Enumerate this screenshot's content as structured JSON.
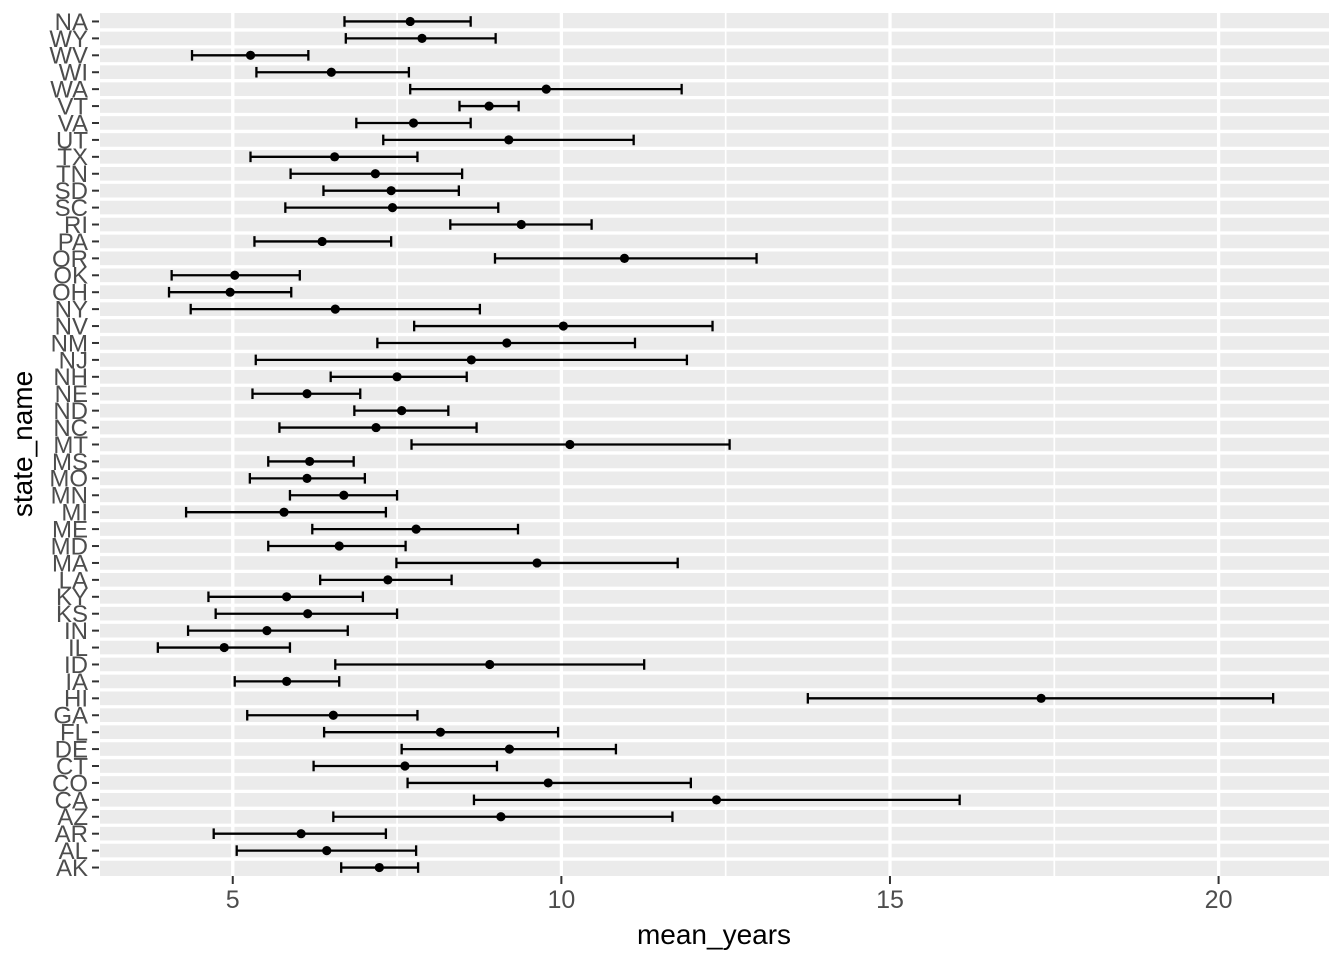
{
  "figure": {
    "background": "#FFFFFF",
    "panel_background": "#EBEBEB",
    "grid_color": "#FFFFFF",
    "axis_text_color": "#4D4D4D",
    "axis_title_color": "#000000",
    "tick_mark_color": "#333333",
    "data_color": "#000000"
  },
  "chart_data": {
    "type": "pointrange",
    "orientation": "horizontal",
    "title": "",
    "xlabel": "mean_years",
    "ylabel": "state_name",
    "grid": true,
    "legend": "none",
    "xlim": [
      2.98,
      21.68
    ],
    "x_ticks": [
      5,
      10,
      15,
      20
    ],
    "x_tick_labels": [
      "5",
      "10",
      "15",
      "20"
    ],
    "x_minor_ticks": [
      7.5,
      12.5,
      17.5
    ],
    "categories_top_to_bottom": [
      "NA",
      "WY",
      "WV",
      "WI",
      "WA",
      "VT",
      "VA",
      "UT",
      "TX",
      "TN",
      "SD",
      "SC",
      "RI",
      "PA",
      "OR",
      "OK",
      "OH",
      "NY",
      "NV",
      "NM",
      "NJ",
      "NH",
      "NE",
      "ND",
      "NC",
      "MT",
      "MS",
      "MO",
      "MN",
      "MI",
      "ME",
      "MD",
      "MA",
      "LA",
      "KY",
      "KS",
      "IN",
      "IL",
      "ID",
      "IA",
      "HI",
      "GA",
      "FL",
      "DE",
      "CT",
      "CO",
      "CA",
      "AZ",
      "AR",
      "AL",
      "AK"
    ],
    "points": [
      {
        "state": "NA",
        "mean": 7.7,
        "low": 6.7,
        "high": 8.62
      },
      {
        "state": "WY",
        "mean": 7.88,
        "low": 6.72,
        "high": 9.0
      },
      {
        "state": "WV",
        "mean": 5.27,
        "low": 4.38,
        "high": 6.15
      },
      {
        "state": "WI",
        "mean": 6.5,
        "low": 5.36,
        "high": 7.68
      },
      {
        "state": "WA",
        "mean": 9.77,
        "low": 7.7,
        "high": 11.83
      },
      {
        "state": "VT",
        "mean": 8.9,
        "low": 8.45,
        "high": 9.35
      },
      {
        "state": "VA",
        "mean": 7.75,
        "low": 6.88,
        "high": 8.62
      },
      {
        "state": "UT",
        "mean": 9.2,
        "low": 7.29,
        "high": 11.1
      },
      {
        "state": "TX",
        "mean": 6.55,
        "low": 5.27,
        "high": 7.81
      },
      {
        "state": "TN",
        "mean": 7.17,
        "low": 5.88,
        "high": 8.49
      },
      {
        "state": "SD",
        "mean": 7.41,
        "low": 6.38,
        "high": 8.44
      },
      {
        "state": "SC",
        "mean": 7.43,
        "low": 5.8,
        "high": 9.04
      },
      {
        "state": "RI",
        "mean": 9.39,
        "low": 8.31,
        "high": 10.46
      },
      {
        "state": "PA",
        "mean": 6.36,
        "low": 5.33,
        "high": 7.41
      },
      {
        "state": "OR",
        "mean": 10.96,
        "low": 8.99,
        "high": 12.97
      },
      {
        "state": "OK",
        "mean": 5.03,
        "low": 4.07,
        "high": 6.02
      },
      {
        "state": "OH",
        "mean": 4.96,
        "low": 4.03,
        "high": 5.89
      },
      {
        "state": "NY",
        "mean": 6.56,
        "low": 4.36,
        "high": 8.76
      },
      {
        "state": "NV",
        "mean": 10.03,
        "low": 7.76,
        "high": 12.3
      },
      {
        "state": "NM",
        "mean": 9.17,
        "low": 7.2,
        "high": 11.12
      },
      {
        "state": "NJ",
        "mean": 8.63,
        "low": 5.35,
        "high": 11.91
      },
      {
        "state": "NH",
        "mean": 7.5,
        "low": 6.49,
        "high": 8.56
      },
      {
        "state": "NE",
        "mean": 6.13,
        "low": 5.3,
        "high": 6.94
      },
      {
        "state": "ND",
        "mean": 7.57,
        "low": 6.85,
        "high": 8.28
      },
      {
        "state": "NC",
        "mean": 7.18,
        "low": 5.71,
        "high": 8.71
      },
      {
        "state": "MT",
        "mean": 10.13,
        "low": 7.72,
        "high": 12.56
      },
      {
        "state": "MS",
        "mean": 6.17,
        "low": 5.54,
        "high": 6.84
      },
      {
        "state": "MO",
        "mean": 6.13,
        "low": 5.26,
        "high": 7.01
      },
      {
        "state": "MN",
        "mean": 6.69,
        "low": 5.87,
        "high": 7.5
      },
      {
        "state": "MI",
        "mean": 5.78,
        "low": 4.29,
        "high": 7.33
      },
      {
        "state": "ME",
        "mean": 7.79,
        "low": 6.21,
        "high": 9.34
      },
      {
        "state": "MD",
        "mean": 6.62,
        "low": 5.54,
        "high": 7.63
      },
      {
        "state": "MA",
        "mean": 9.63,
        "low": 7.49,
        "high": 11.77
      },
      {
        "state": "LA",
        "mean": 7.36,
        "low": 6.33,
        "high": 8.33
      },
      {
        "state": "KY",
        "mean": 5.82,
        "low": 4.63,
        "high": 6.98
      },
      {
        "state": "KS",
        "mean": 6.14,
        "low": 4.74,
        "high": 7.5
      },
      {
        "state": "IN",
        "mean": 5.52,
        "low": 4.32,
        "high": 6.75
      },
      {
        "state": "IL",
        "mean": 4.87,
        "low": 3.86,
        "high": 5.87
      },
      {
        "state": "ID",
        "mean": 8.91,
        "low": 6.56,
        "high": 11.26
      },
      {
        "state": "IA",
        "mean": 5.82,
        "low": 5.03,
        "high": 6.62
      },
      {
        "state": "HI",
        "mean": 17.3,
        "low": 13.75,
        "high": 20.83
      },
      {
        "state": "GA",
        "mean": 6.53,
        "low": 5.22,
        "high": 7.81
      },
      {
        "state": "FL",
        "mean": 8.16,
        "low": 6.39,
        "high": 9.95
      },
      {
        "state": "DE",
        "mean": 9.21,
        "low": 7.57,
        "high": 10.83
      },
      {
        "state": "CT",
        "mean": 7.62,
        "low": 6.23,
        "high": 9.02
      },
      {
        "state": "CO",
        "mean": 9.8,
        "low": 7.66,
        "high": 11.97
      },
      {
        "state": "CA",
        "mean": 12.36,
        "low": 8.67,
        "high": 16.06
      },
      {
        "state": "AZ",
        "mean": 9.08,
        "low": 6.53,
        "high": 11.69
      },
      {
        "state": "AR",
        "mean": 6.04,
        "low": 4.71,
        "high": 7.33
      },
      {
        "state": "AL",
        "mean": 6.43,
        "low": 5.06,
        "high": 7.79
      },
      {
        "state": "AK",
        "mean": 7.23,
        "low": 6.65,
        "high": 7.82
      }
    ]
  }
}
